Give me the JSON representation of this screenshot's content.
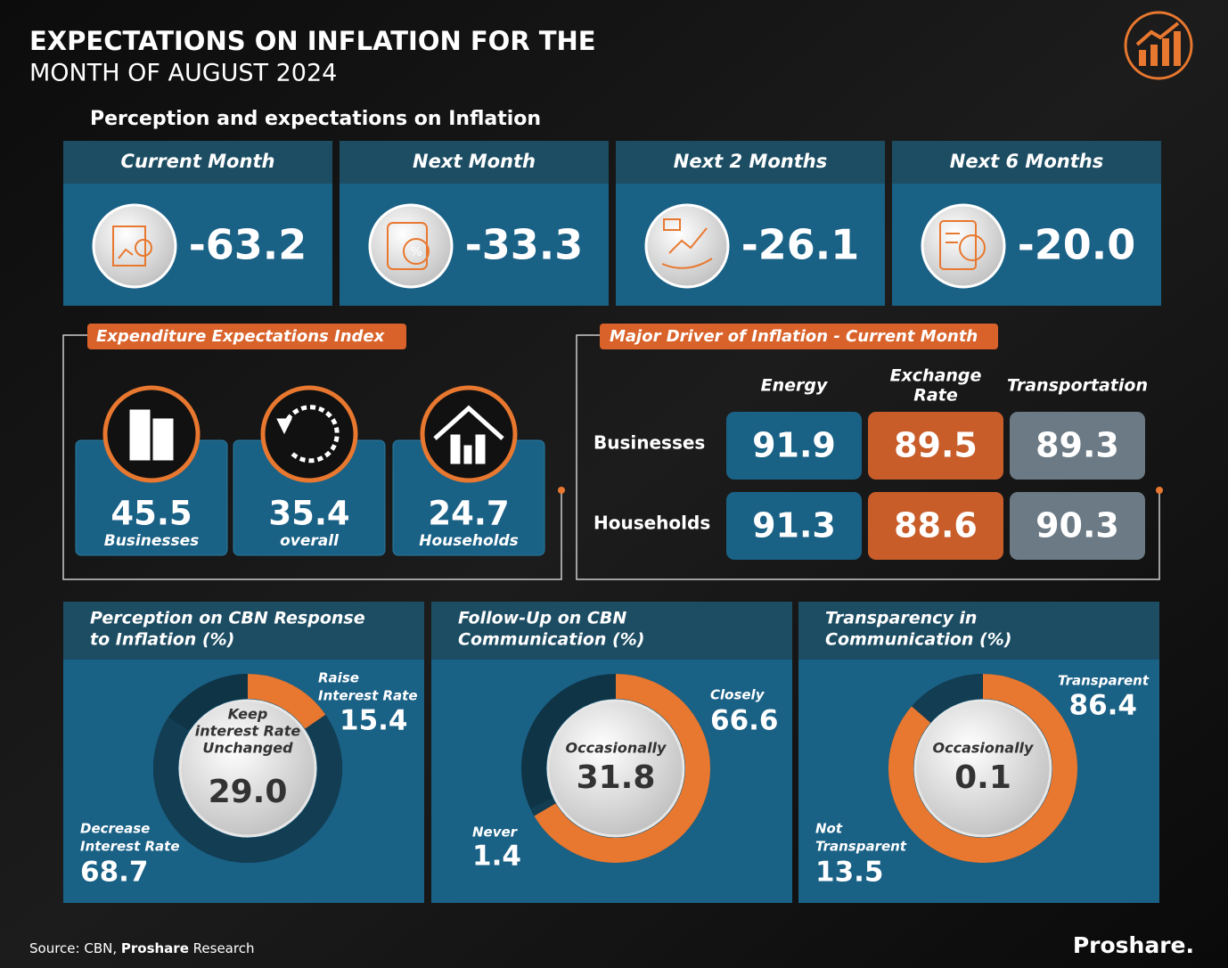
{
  "header": {
    "title": "EXPECTATIONS ON INFLATION FOR THE",
    "subtitle": "MONTH OF AUGUST 2024"
  },
  "expectations": {
    "title": "Perception and expectations on Inflation",
    "cards": [
      {
        "label": "Current Month",
        "value": "-63.2"
      },
      {
        "label": "Next Month",
        "value": "-33.3"
      },
      {
        "label": "Next 2 Months",
        "value": "-26.1"
      },
      {
        "label": "Next 6 Months",
        "value": "-20.0"
      }
    ]
  },
  "expenditure": {
    "title": "Expenditure Expectations Index",
    "items": [
      {
        "value": "45.5",
        "label": "Businesses"
      },
      {
        "value": "35.4",
        "label": "overall"
      },
      {
        "value": "24.7",
        "label": "Households"
      }
    ]
  },
  "drivers": {
    "title": "Major Driver of Inflation - Current Month",
    "columns": [
      [
        "Energy"
      ],
      [
        "Exchange",
        "Rate"
      ],
      [
        "Transportation"
      ]
    ],
    "rows": [
      {
        "label": "Businesses",
        "values": [
          "91.9",
          "89.5",
          "89.3"
        ]
      },
      {
        "label": "Households",
        "values": [
          "91.3",
          "88.6",
          "90.3"
        ]
      }
    ]
  },
  "cbn_charts": [
    {
      "type": "donut",
      "title": [
        "Perception on CBN Response",
        "to Inflation (%)"
      ],
      "center": {
        "label": [
          "Keep",
          "interest Rate",
          "Unchanged"
        ],
        "value": 29.0,
        "value_label": "29.0"
      },
      "segments": [
        {
          "name": [
            "Raise",
            "Interest Rate"
          ],
          "value": 15.4,
          "color": "#e8782f"
        },
        {
          "name": [
            "Decrease",
            "Interest Rate"
          ],
          "value": 68.7,
          "color": "#123d52"
        }
      ]
    },
    {
      "type": "donut",
      "title": [
        "Follow-Up on CBN",
        "Communication (%)"
      ],
      "center": {
        "label": [
          "Occasionally"
        ],
        "value": 31.8,
        "value_label": "31.8"
      },
      "segments": [
        {
          "name": [
            "Closely"
          ],
          "value": 66.6,
          "color": "#e8782f"
        },
        {
          "name": [
            "Never"
          ],
          "value": 1.4,
          "color": "#123d52"
        }
      ]
    },
    {
      "type": "donut",
      "title": [
        "Transparency in",
        "Communication (%)"
      ],
      "center": {
        "label": [
          "Occasionally"
        ],
        "value": 0.1,
        "value_label": "0.1"
      },
      "segments": [
        {
          "name": [
            "Transparent"
          ],
          "value": 86.4,
          "color": "#e8782f"
        },
        {
          "name": [
            "Not",
            "Transparent"
          ],
          "value": 13.5,
          "color": "#123d52"
        }
      ]
    }
  ],
  "footer": {
    "source": "Source: CBN,",
    "source_org": "Proshare",
    "source_suffix": "Research",
    "brand": "Proshare."
  }
}
